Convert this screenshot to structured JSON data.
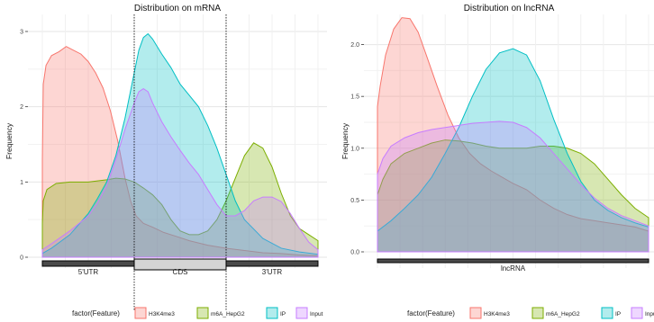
{
  "chart_data": [
    {
      "type": "area",
      "title": "Distribution on mRNA",
      "xlabel": "",
      "ylabel": "Frequency",
      "xlim": [
        0,
        3
      ],
      "ylim": [
        0,
        3
      ],
      "y_ticks": [
        0,
        1,
        2,
        3
      ],
      "dividers": [
        1,
        2
      ],
      "grid": true,
      "regions": [
        {
          "label": "5'UTR",
          "from": 0,
          "to": 1
        },
        {
          "label": "CDS",
          "from": 1,
          "to": 2
        },
        {
          "label": "3'UTR",
          "from": 2,
          "to": 3
        }
      ],
      "series": [
        {
          "name": "H3K4me3",
          "color": "#f8766d",
          "x": [
            0,
            0.01,
            0.04,
            0.1,
            0.18,
            0.26,
            0.34,
            0.42,
            0.5,
            0.58,
            0.66,
            0.74,
            0.82,
            0.9,
            0.96,
            1.02,
            1.1,
            1.2,
            1.32,
            1.45,
            1.6,
            1.8,
            2.0,
            2.2,
            2.4,
            2.6,
            2.8,
            3.0
          ],
          "y": [
            1.3,
            2.3,
            2.55,
            2.68,
            2.73,
            2.8,
            2.75,
            2.7,
            2.6,
            2.45,
            2.25,
            1.95,
            1.55,
            1.05,
            0.75,
            0.55,
            0.45,
            0.4,
            0.33,
            0.28,
            0.22,
            0.16,
            0.12,
            0.09,
            0.06,
            0.05,
            0.03,
            0.02
          ]
        },
        {
          "name": "m6A_HepG2",
          "color": "#7cae00",
          "x": [
            0,
            0.01,
            0.05,
            0.15,
            0.3,
            0.5,
            0.7,
            0.8,
            0.9,
            1.0,
            1.1,
            1.2,
            1.3,
            1.4,
            1.5,
            1.6,
            1.7,
            1.8,
            1.9,
            2.0,
            2.1,
            2.2,
            2.3,
            2.4,
            2.5,
            2.6,
            2.7,
            2.8,
            2.9,
            3.0
          ],
          "y": [
            0.45,
            0.75,
            0.9,
            0.98,
            1.0,
            1.0,
            1.03,
            1.05,
            1.04,
            1.0,
            0.92,
            0.83,
            0.7,
            0.5,
            0.35,
            0.3,
            0.3,
            0.35,
            0.5,
            0.75,
            1.05,
            1.35,
            1.52,
            1.45,
            1.2,
            0.85,
            0.55,
            0.38,
            0.3,
            0.22
          ]
        },
        {
          "name": "IP",
          "color": "#00bfc4",
          "x": [
            0,
            0.1,
            0.3,
            0.5,
            0.6,
            0.7,
            0.8,
            0.9,
            1.0,
            1.05,
            1.1,
            1.15,
            1.2,
            1.3,
            1.4,
            1.5,
            1.6,
            1.7,
            1.8,
            1.9,
            2.0,
            2.1,
            2.2,
            2.4,
            2.6,
            2.8,
            3.0
          ],
          "y": [
            0.05,
            0.12,
            0.3,
            0.58,
            0.78,
            1.0,
            1.35,
            1.85,
            2.45,
            2.75,
            2.92,
            2.97,
            2.9,
            2.7,
            2.52,
            2.3,
            2.15,
            2.0,
            1.75,
            1.45,
            1.1,
            0.75,
            0.5,
            0.25,
            0.12,
            0.07,
            0.04
          ]
        },
        {
          "name": "Input",
          "color": "#c77cff",
          "x": [
            0,
            0.1,
            0.3,
            0.5,
            0.6,
            0.7,
            0.8,
            0.9,
            1.0,
            1.05,
            1.1,
            1.15,
            1.2,
            1.3,
            1.4,
            1.5,
            1.6,
            1.7,
            1.8,
            1.9,
            2.0,
            2.1,
            2.2,
            2.3,
            2.4,
            2.5,
            2.6,
            2.7,
            2.8,
            2.9,
            3.0
          ],
          "y": [
            0.1,
            0.18,
            0.35,
            0.55,
            0.72,
            0.95,
            1.3,
            1.7,
            2.05,
            2.2,
            2.24,
            2.2,
            2.05,
            1.8,
            1.6,
            1.42,
            1.25,
            1.1,
            0.9,
            0.7,
            0.55,
            0.55,
            0.62,
            0.75,
            0.8,
            0.8,
            0.74,
            0.58,
            0.38,
            0.2,
            0.1
          ]
        }
      ]
    },
    {
      "type": "area",
      "title": "Distribution on lncRNA",
      "xlabel": "",
      "ylabel": "Frequency",
      "xlim": [
        0,
        1
      ],
      "ylim": [
        0,
        2.3
      ],
      "y_ticks": [
        0.0,
        0.5,
        1.0,
        1.5,
        2.0
      ],
      "y_tick_labels": [
        "0.0",
        "0.5",
        "1.0",
        "1.5",
        "2.0"
      ],
      "grid": true,
      "regions": [
        {
          "label": "lncRNA",
          "from": 0,
          "to": 1
        }
      ],
      "series": [
        {
          "name": "H3K4me3",
          "color": "#f8766d",
          "x": [
            0,
            0.01,
            0.03,
            0.06,
            0.09,
            0.12,
            0.15,
            0.18,
            0.22,
            0.26,
            0.3,
            0.34,
            0.38,
            0.42,
            0.46,
            0.5,
            0.55,
            0.6,
            0.65,
            0.7,
            0.75,
            0.8,
            0.85,
            0.9,
            0.95,
            1.0
          ],
          "y": [
            1.4,
            1.6,
            1.9,
            2.15,
            2.26,
            2.25,
            2.12,
            1.9,
            1.6,
            1.32,
            1.1,
            0.95,
            0.85,
            0.78,
            0.72,
            0.66,
            0.6,
            0.5,
            0.42,
            0.36,
            0.32,
            0.3,
            0.28,
            0.26,
            0.24,
            0.2
          ]
        },
        {
          "name": "m6A_HepG2",
          "color": "#7cae00",
          "x": [
            0,
            0.02,
            0.05,
            0.1,
            0.15,
            0.2,
            0.25,
            0.3,
            0.35,
            0.4,
            0.45,
            0.5,
            0.55,
            0.6,
            0.65,
            0.7,
            0.75,
            0.8,
            0.85,
            0.9,
            0.95,
            1.0
          ],
          "y": [
            0.55,
            0.7,
            0.85,
            0.95,
            1.0,
            1.05,
            1.08,
            1.07,
            1.05,
            1.02,
            1.0,
            1.0,
            1.0,
            1.02,
            1.02,
            1.0,
            0.95,
            0.85,
            0.7,
            0.55,
            0.42,
            0.33
          ]
        },
        {
          "name": "IP",
          "color": "#00bfc4",
          "x": [
            0,
            0.05,
            0.1,
            0.15,
            0.2,
            0.25,
            0.3,
            0.35,
            0.4,
            0.45,
            0.5,
            0.55,
            0.6,
            0.65,
            0.7,
            0.75,
            0.8,
            0.85,
            0.9,
            0.95,
            1.0
          ],
          "y": [
            0.2,
            0.3,
            0.42,
            0.55,
            0.72,
            0.95,
            1.2,
            1.5,
            1.76,
            1.92,
            1.96,
            1.9,
            1.65,
            1.28,
            0.95,
            0.68,
            0.5,
            0.4,
            0.33,
            0.28,
            0.24
          ]
        },
        {
          "name": "Input",
          "color": "#c77cff",
          "x": [
            0,
            0.02,
            0.05,
            0.1,
            0.15,
            0.2,
            0.25,
            0.3,
            0.35,
            0.4,
            0.45,
            0.5,
            0.55,
            0.6,
            0.65,
            0.7,
            0.75,
            0.8,
            0.85,
            0.9,
            0.95,
            1.0
          ],
          "y": [
            0.75,
            0.9,
            1.02,
            1.1,
            1.15,
            1.18,
            1.2,
            1.22,
            1.24,
            1.25,
            1.26,
            1.25,
            1.2,
            1.1,
            0.95,
            0.8,
            0.65,
            0.52,
            0.42,
            0.35,
            0.3,
            0.25
          ]
        }
      ]
    }
  ],
  "legend": {
    "title": "factor(Feature)",
    "placement": "bottom",
    "items": [
      {
        "label": "H3K4me3",
        "color": "#f8766d"
      },
      {
        "label": "m6A_HepG2",
        "color": "#7cae00"
      },
      {
        "label": "IP",
        "color": "#00bfc4"
      },
      {
        "label": "Input",
        "color": "#c77cff"
      }
    ]
  }
}
